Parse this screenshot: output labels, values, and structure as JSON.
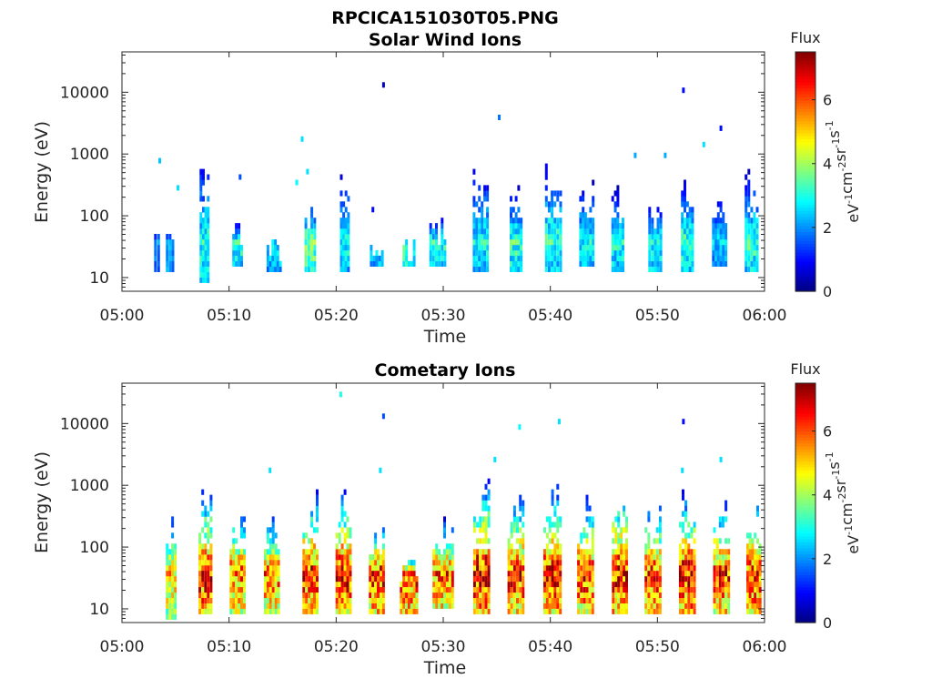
{
  "figure": {
    "filename_title": "RPCICA151030T05.PNG"
  },
  "chart_data": [
    {
      "type": "heatmap",
      "title": "Solar Wind Ions",
      "xlabel": "Time",
      "ylabel": "Energy (eV)",
      "x_ticks": [
        "05:00",
        "05:10",
        "05:20",
        "05:30",
        "05:40",
        "05:50",
        "06:00"
      ],
      "x_range_minutes": [
        0,
        60
      ],
      "y_ticks": [
        "10",
        "100",
        "1000",
        "10000"
      ],
      "y_scale": "log",
      "y_range": [
        6,
        45000
      ],
      "colorbar": {
        "title": "Flux",
        "label_parts": [
          "eV",
          "-1",
          "cm",
          "-2",
          "sr",
          "-1",
          "s",
          "-1"
        ],
        "ticks": [
          "0",
          "2",
          "4",
          "6"
        ],
        "range": [
          0,
          7.5
        ],
        "colormap": "jet"
      },
      "bursts": [
        {
          "t": 3.3,
          "w": 0.6,
          "lo": 12,
          "hi": 70,
          "peak": 2.0
        },
        {
          "t": 4.5,
          "w": 0.8,
          "lo": 12,
          "hi": 70,
          "peak": 2.6
        },
        {
          "t": 7.7,
          "w": 0.9,
          "lo": 8,
          "hi": 1100,
          "peak": 3.2
        },
        {
          "t": 10.8,
          "w": 1.0,
          "lo": 15,
          "hi": 80,
          "peak": 3.4
        },
        {
          "t": 14.2,
          "w": 1.4,
          "lo": 12,
          "hi": 45,
          "peak": 2.8
        },
        {
          "t": 17.6,
          "w": 1.1,
          "lo": 12,
          "hi": 200,
          "peak": 3.8
        },
        {
          "t": 20.8,
          "w": 0.9,
          "lo": 12,
          "hi": 700,
          "peak": 3.0
        },
        {
          "t": 23.8,
          "w": 1.3,
          "lo": 15,
          "hi": 45,
          "peak": 3.0
        },
        {
          "t": 26.8,
          "w": 1.2,
          "lo": 15,
          "hi": 45,
          "peak": 3.6
        },
        {
          "t": 29.5,
          "w": 1.6,
          "lo": 15,
          "hi": 100,
          "peak": 3.2
        },
        {
          "t": 33.5,
          "w": 1.5,
          "lo": 12,
          "hi": 800,
          "peak": 3.0
        },
        {
          "t": 36.8,
          "w": 1.2,
          "lo": 12,
          "hi": 300,
          "peak": 3.4
        },
        {
          "t": 40.3,
          "w": 1.6,
          "lo": 12,
          "hi": 1000,
          "peak": 3.3
        },
        {
          "t": 43.4,
          "w": 1.4,
          "lo": 15,
          "hi": 400,
          "peak": 3.0
        },
        {
          "t": 46.3,
          "w": 1.2,
          "lo": 12,
          "hi": 300,
          "peak": 3.1
        },
        {
          "t": 49.8,
          "w": 1.3,
          "lo": 12,
          "hi": 180,
          "peak": 3.2
        },
        {
          "t": 52.8,
          "w": 1.2,
          "lo": 12,
          "hi": 400,
          "peak": 3.5
        },
        {
          "t": 55.8,
          "w": 1.4,
          "lo": 15,
          "hi": 300,
          "peak": 2.6
        },
        {
          "t": 58.8,
          "w": 1.3,
          "lo": 12,
          "hi": 600,
          "peak": 3.4
        }
      ],
      "specks": [
        {
          "t": 24.3,
          "e": 13000,
          "v": 0.5
        },
        {
          "t": 52.3,
          "e": 10500,
          "v": 1.0
        },
        {
          "t": 35.1,
          "e": 3900,
          "v": 1.8
        },
        {
          "t": 55.8,
          "e": 2800,
          "v": 1.0
        },
        {
          "t": 16.7,
          "e": 1800,
          "v": 2.6
        },
        {
          "t": 3.4,
          "e": 750,
          "v": 2.4
        },
        {
          "t": 10.9,
          "e": 450,
          "v": 1.5
        },
        {
          "t": 5.1,
          "e": 260,
          "v": 2.6
        },
        {
          "t": 16.2,
          "e": 380,
          "v": 2.8
        },
        {
          "t": 17.2,
          "e": 480,
          "v": 2.6
        },
        {
          "t": 23.3,
          "e": 120,
          "v": 1.0
        },
        {
          "t": 47.8,
          "e": 900,
          "v": 2.2
        },
        {
          "t": 50.6,
          "e": 1050,
          "v": 2.2
        },
        {
          "t": 54.2,
          "e": 1300,
          "v": 2.6
        }
      ]
    },
    {
      "type": "heatmap",
      "title": "Cometary Ions",
      "xlabel": "Time",
      "ylabel": "Energy (eV)",
      "x_ticks": [
        "05:00",
        "05:10",
        "05:20",
        "05:30",
        "05:40",
        "05:50",
        "06:00"
      ],
      "x_range_minutes": [
        0,
        60
      ],
      "y_ticks": [
        "10",
        "100",
        "1000",
        "10000"
      ],
      "y_scale": "log",
      "y_range": [
        6,
        45000
      ],
      "colorbar": {
        "title": "Flux",
        "label_parts": [
          "eV",
          "-1",
          "cm",
          "-2",
          "sr",
          "-1",
          "s",
          "-1"
        ],
        "ticks": [
          "0",
          "2",
          "4",
          "6"
        ],
        "range": [
          0,
          7.5
        ],
        "colormap": "jet"
      },
      "bursts": [
        {
          "t": 4.6,
          "w": 1.0,
          "lo": 7,
          "hi": 500,
          "peak": 5.2
        },
        {
          "t": 7.8,
          "w": 1.3,
          "lo": 8,
          "hi": 1100,
          "peak": 6.8
        },
        {
          "t": 10.8,
          "w": 1.5,
          "lo": 8,
          "hi": 500,
          "peak": 6.0
        },
        {
          "t": 14.0,
          "w": 1.5,
          "lo": 8,
          "hi": 350,
          "peak": 6.0
        },
        {
          "t": 17.6,
          "w": 1.5,
          "lo": 8,
          "hi": 900,
          "peak": 6.6
        },
        {
          "t": 20.7,
          "w": 1.5,
          "lo": 8,
          "hi": 1000,
          "peak": 6.9
        },
        {
          "t": 23.8,
          "w": 1.5,
          "lo": 8,
          "hi": 300,
          "peak": 6.6
        },
        {
          "t": 26.8,
          "w": 1.7,
          "lo": 8,
          "hi": 70,
          "peak": 6.5
        },
        {
          "t": 30.0,
          "w": 2.0,
          "lo": 10,
          "hi": 300,
          "peak": 6.2
        },
        {
          "t": 33.6,
          "w": 1.6,
          "lo": 8,
          "hi": 1500,
          "peak": 7.0
        },
        {
          "t": 36.8,
          "w": 1.6,
          "lo": 8,
          "hi": 800,
          "peak": 6.6
        },
        {
          "t": 40.2,
          "w": 1.7,
          "lo": 8,
          "hi": 1200,
          "peak": 6.8
        },
        {
          "t": 43.3,
          "w": 1.6,
          "lo": 8,
          "hi": 800,
          "peak": 6.6
        },
        {
          "t": 46.5,
          "w": 1.5,
          "lo": 8,
          "hi": 1200,
          "peak": 6.8
        },
        {
          "t": 49.6,
          "w": 1.6,
          "lo": 8,
          "hi": 700,
          "peak": 6.4
        },
        {
          "t": 52.8,
          "w": 1.6,
          "lo": 8,
          "hi": 900,
          "peak": 6.9
        },
        {
          "t": 56.0,
          "w": 1.6,
          "lo": 8,
          "hi": 700,
          "peak": 6.4
        },
        {
          "t": 59.0,
          "w": 1.4,
          "lo": 8,
          "hi": 700,
          "peak": 6.6
        }
      ],
      "specks": [
        {
          "t": 20.3,
          "e": 30000,
          "v": 3.0
        },
        {
          "t": 24.3,
          "e": 13000,
          "v": 1.5
        },
        {
          "t": 40.7,
          "e": 11500,
          "v": 2.6
        },
        {
          "t": 37.0,
          "e": 8500,
          "v": 2.8
        },
        {
          "t": 52.3,
          "e": 10500,
          "v": 1.0
        },
        {
          "t": 34.7,
          "e": 2800,
          "v": 2.6
        },
        {
          "t": 13.7,
          "e": 1700,
          "v": 2.6
        },
        {
          "t": 24.0,
          "e": 1800,
          "v": 2.6
        },
        {
          "t": 52.2,
          "e": 1800,
          "v": 2.6
        },
        {
          "t": 55.8,
          "e": 2800,
          "v": 2.6
        }
      ]
    }
  ]
}
